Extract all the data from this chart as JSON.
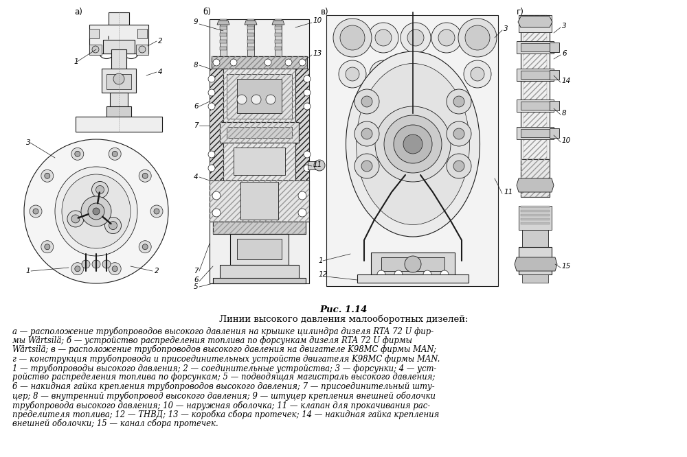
{
  "title": "Рис. 1.14",
  "subtitle": "Линии высокого давления малооборотных дизелей:",
  "bg_color": "#ffffff",
  "fig_width": 10.0,
  "fig_height": 6.66,
  "caption_line1_italic": [
    "а — расположение трубопроводов высокого давления на крышке цилиндра дизеля RTA 72 U фир-",
    "мы Wärtsilä; б — устройство распределения топлива по форсункам дизеля RTA 72 U фирмы",
    "Wärtsilä; в — расположение трубопроводов высокого давления на двигателе K98MC фирмы MAN;",
    "г — конструкция трубопровода и присоединительных устройств двигателя K98MC фирмы MAN."
  ],
  "caption_line2_italic": [
    "1 — трубопроводы высокого давления; 2 — соединительные устройства; 3 — форсунки; 4 — уст-",
    "ройство распределения топлива по форсункам; 5 — подводящая магистраль высокого давления;",
    "6 — накидная гайка крепления трубопроводов высокого давления; 7 — присоединительный шту-",
    "цер; 8 — внутренний трубопровод высокого давления; 9 — штуцер крепления внешней оболочки",
    "трубопровода высокого давления; 10 — наружная оболочка; 11 — клапан для прокачивания рас-",
    "пределителя топлива; 12 — ТНВД; 13 — коробка сбора протечек; 14 — накидная гайка крепления",
    "внешней оболочки; 15 — канал сбора протечек."
  ]
}
